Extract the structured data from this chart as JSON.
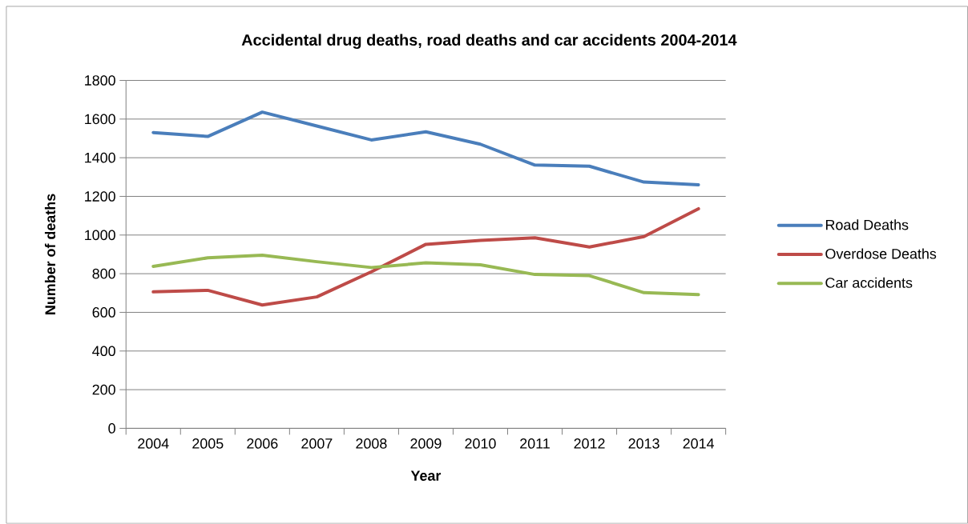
{
  "chart_data": {
    "type": "line",
    "title": "Accidental drug deaths, road deaths and car accidents 2004-2014",
    "xlabel": "Year",
    "ylabel": "Number of deaths",
    "categories": [
      "2004",
      "2005",
      "2006",
      "2007",
      "2008",
      "2009",
      "2010",
      "2011",
      "2012",
      "2013",
      "2014"
    ],
    "series": [
      {
        "name": "Road Deaths",
        "color": "#4a7ebb",
        "values": [
          1530,
          1510,
          1636,
          1564,
          1492,
          1534,
          1470,
          1362,
          1356,
          1274,
          1260
        ]
      },
      {
        "name": "Overdose Deaths",
        "color": "#be4b48",
        "values": [
          706,
          714,
          638,
          680,
          810,
          952,
          972,
          986,
          938,
          992,
          1136
        ]
      },
      {
        "name": "Car accidents",
        "color": "#98b954",
        "values": [
          838,
          882,
          896,
          862,
          832,
          856,
          846,
          796,
          790,
          702,
          692
        ]
      }
    ],
    "ylim": [
      0,
      1800
    ],
    "yticks": [
      0,
      200,
      400,
      600,
      800,
      1000,
      1200,
      1400,
      1600,
      1800
    ],
    "grid": "y",
    "legend": "right"
  }
}
